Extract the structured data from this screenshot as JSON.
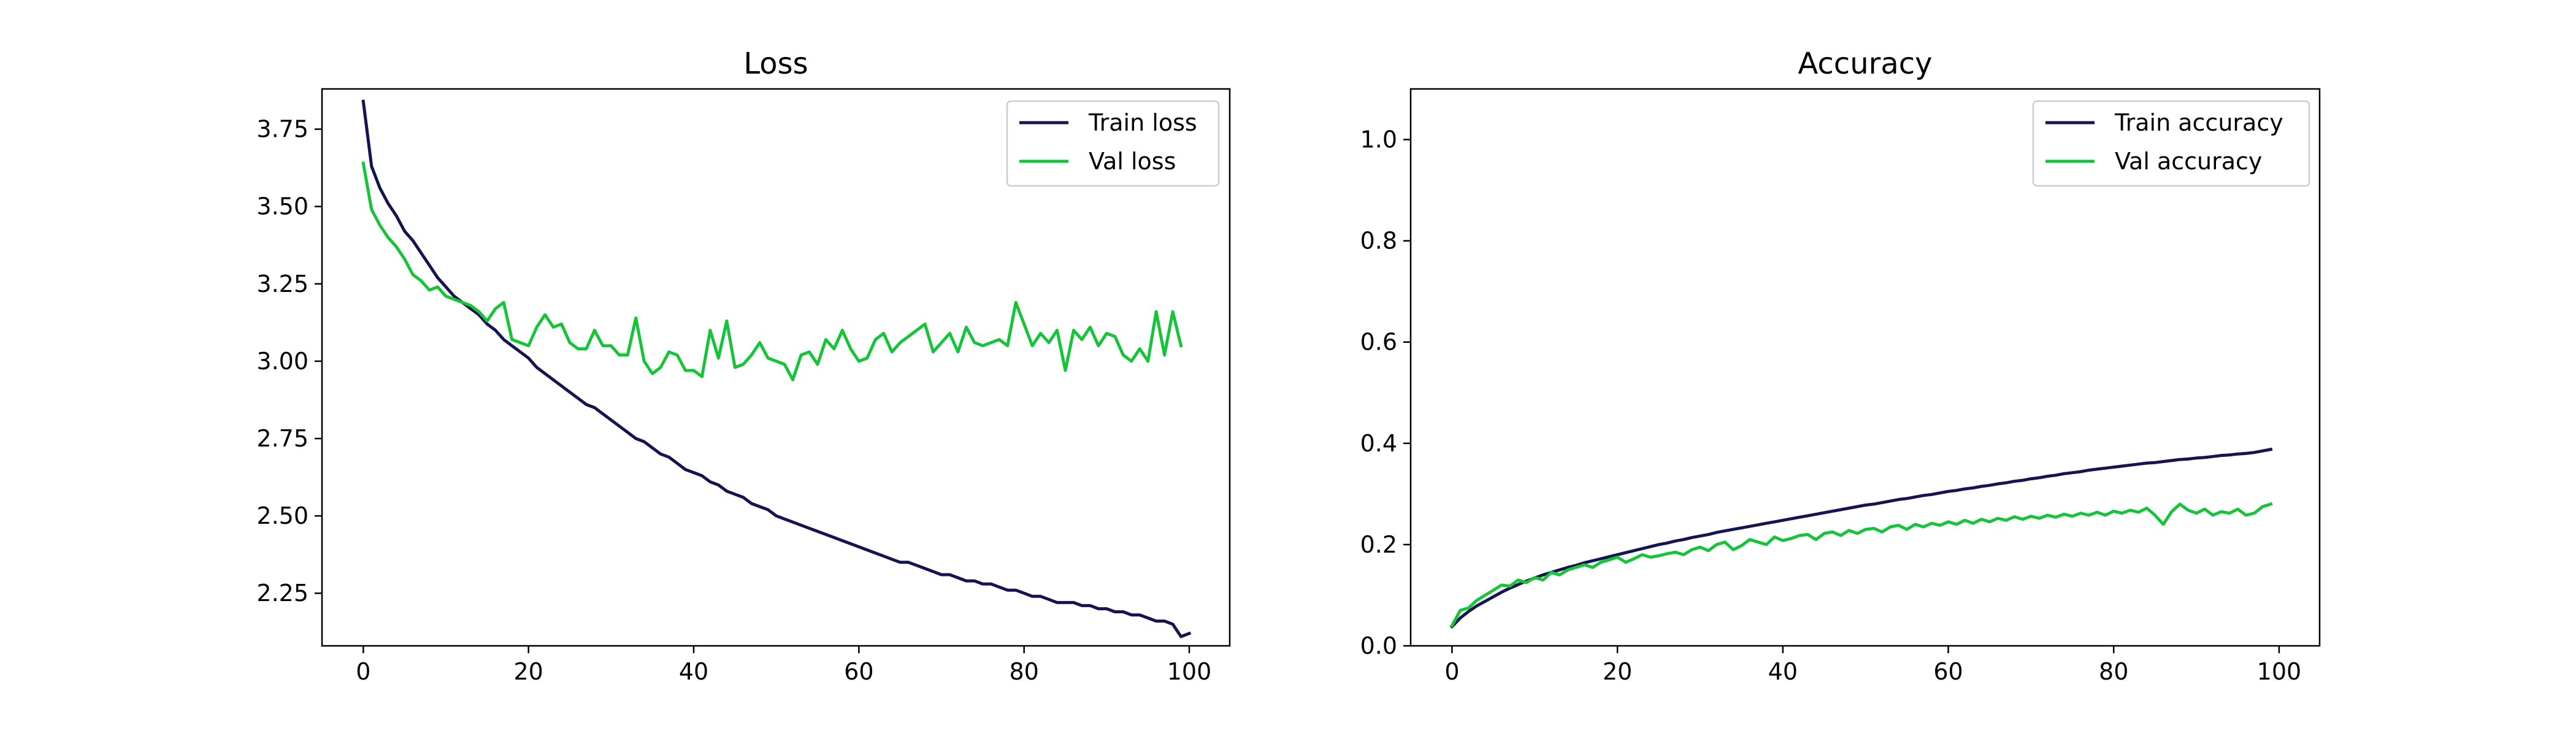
{
  "chart_data": [
    {
      "type": "line",
      "title": "Loss",
      "xlabel": "",
      "ylabel": "",
      "xlim": [
        -5,
        104.9
      ],
      "ylim": [
        2.08,
        3.88
      ],
      "xticks": [
        0,
        20,
        40,
        60,
        80,
        100
      ],
      "yticks": [
        2.25,
        2.5,
        2.75,
        3.0,
        3.25,
        3.5,
        3.75
      ],
      "ytick_labels": [
        "2.25",
        "2.50",
        "2.75",
        "3.00",
        "3.25",
        "3.50",
        "3.75"
      ],
      "grid": false,
      "legend_position": "upper-right",
      "series": [
        {
          "name": "Train loss",
          "color": "#141450",
          "values": [
            3.84,
            3.63,
            3.56,
            3.51,
            3.47,
            3.42,
            3.39,
            3.35,
            3.31,
            3.27,
            3.24,
            3.21,
            3.19,
            3.17,
            3.15,
            3.12,
            3.1,
            3.07,
            3.05,
            3.03,
            3.01,
            2.98,
            2.96,
            2.94,
            2.92,
            2.9,
            2.88,
            2.86,
            2.85,
            2.83,
            2.81,
            2.79,
            2.77,
            2.75,
            2.74,
            2.72,
            2.7,
            2.69,
            2.67,
            2.65,
            2.64,
            2.63,
            2.61,
            2.6,
            2.58,
            2.57,
            2.56,
            2.54,
            2.53,
            2.52,
            2.5,
            2.49,
            2.48,
            2.47,
            2.46,
            2.45,
            2.44,
            2.43,
            2.42,
            2.41,
            2.4,
            2.39,
            2.38,
            2.37,
            2.36,
            2.35,
            2.35,
            2.34,
            2.33,
            2.32,
            2.31,
            2.31,
            2.3,
            2.29,
            2.29,
            2.28,
            2.28,
            2.27,
            2.26,
            2.26,
            2.25,
            2.24,
            2.24,
            2.23,
            2.22,
            2.22,
            2.22,
            2.21,
            2.21,
            2.2,
            2.2,
            2.19,
            2.19,
            2.18,
            2.18,
            2.17,
            2.16,
            2.16,
            2.15,
            2.11,
            2.12
          ]
        },
        {
          "name": "Val loss",
          "color": "#16c43a",
          "values": [
            3.64,
            3.49,
            3.44,
            3.4,
            3.37,
            3.33,
            3.28,
            3.26,
            3.23,
            3.24,
            3.21,
            3.2,
            3.19,
            3.18,
            3.16,
            3.13,
            3.17,
            3.19,
            3.07,
            3.06,
            3.05,
            3.11,
            3.15,
            3.11,
            3.12,
            3.06,
            3.04,
            3.04,
            3.1,
            3.05,
            3.05,
            3.02,
            3.02,
            3.14,
            3.0,
            2.96,
            2.98,
            3.03,
            3.02,
            2.97,
            2.97,
            2.95,
            3.1,
            3.01,
            3.13,
            2.98,
            2.99,
            3.02,
            3.06,
            3.01,
            3.0,
            2.99,
            2.94,
            3.02,
            3.03,
            2.99,
            3.07,
            3.04,
            3.1,
            3.04,
            3.0,
            3.01,
            3.07,
            3.09,
            3.03,
            3.06,
            3.08,
            3.1,
            3.12,
            3.03,
            3.06,
            3.09,
            3.03,
            3.11,
            3.06,
            3.05,
            3.06,
            3.07,
            3.05,
            3.19,
            3.12,
            3.05,
            3.09,
            3.06,
            3.1,
            2.97,
            3.1,
            3.07,
            3.11,
            3.05,
            3.09,
            3.08,
            3.02,
            3.0,
            3.04,
            3.0,
            3.16,
            3.02,
            3.16,
            3.05
          ]
        }
      ]
    },
    {
      "type": "line",
      "title": "Accuracy",
      "xlabel": "",
      "ylabel": "",
      "xlim": [
        -5,
        104.9
      ],
      "ylim": [
        0.0,
        1.1
      ],
      "xticks": [
        0,
        20,
        40,
        60,
        80,
        100
      ],
      "yticks": [
        0.0,
        0.2,
        0.4,
        0.6,
        0.8,
        1.0
      ],
      "ytick_labels": [
        "0.0",
        "0.2",
        "0.4",
        "0.6",
        "0.8",
        "1.0"
      ],
      "grid": false,
      "legend_position": "upper-right",
      "series": [
        {
          "name": "Train accuracy",
          "color": "#141450",
          "values": [
            0.038,
            0.055,
            0.068,
            0.079,
            0.088,
            0.097,
            0.106,
            0.114,
            0.121,
            0.128,
            0.134,
            0.14,
            0.145,
            0.15,
            0.155,
            0.159,
            0.164,
            0.168,
            0.172,
            0.176,
            0.18,
            0.184,
            0.188,
            0.192,
            0.196,
            0.2,
            0.203,
            0.207,
            0.21,
            0.214,
            0.217,
            0.22,
            0.224,
            0.227,
            0.23,
            0.233,
            0.236,
            0.239,
            0.242,
            0.245,
            0.248,
            0.251,
            0.254,
            0.257,
            0.26,
            0.263,
            0.266,
            0.269,
            0.272,
            0.275,
            0.278,
            0.28,
            0.283,
            0.286,
            0.289,
            0.291,
            0.294,
            0.297,
            0.299,
            0.302,
            0.305,
            0.307,
            0.31,
            0.312,
            0.315,
            0.317,
            0.32,
            0.322,
            0.325,
            0.327,
            0.33,
            0.332,
            0.335,
            0.337,
            0.34,
            0.342,
            0.344,
            0.347,
            0.349,
            0.351,
            0.353,
            0.355,
            0.357,
            0.359,
            0.361,
            0.362,
            0.364,
            0.366,
            0.368,
            0.369,
            0.371,
            0.372,
            0.374,
            0.376,
            0.377,
            0.379,
            0.38,
            0.382,
            0.385,
            0.388
          ]
        },
        {
          "name": "Val accuracy",
          "color": "#16c43a",
          "values": [
            0.04,
            0.07,
            0.075,
            0.09,
            0.1,
            0.11,
            0.12,
            0.118,
            0.13,
            0.125,
            0.135,
            0.13,
            0.145,
            0.14,
            0.15,
            0.155,
            0.16,
            0.155,
            0.165,
            0.17,
            0.175,
            0.165,
            0.172,
            0.18,
            0.175,
            0.178,
            0.182,
            0.185,
            0.18,
            0.19,
            0.195,
            0.188,
            0.2,
            0.205,
            0.19,
            0.198,
            0.21,
            0.205,
            0.2,
            0.215,
            0.208,
            0.212,
            0.218,
            0.22,
            0.21,
            0.222,
            0.225,
            0.218,
            0.228,
            0.222,
            0.23,
            0.232,
            0.225,
            0.235,
            0.238,
            0.23,
            0.24,
            0.235,
            0.242,
            0.238,
            0.245,
            0.24,
            0.248,
            0.242,
            0.25,
            0.245,
            0.252,
            0.248,
            0.255,
            0.25,
            0.256,
            0.252,
            0.258,
            0.254,
            0.26,
            0.256,
            0.262,
            0.258,
            0.264,
            0.258,
            0.266,
            0.262,
            0.268,
            0.264,
            0.272,
            0.258,
            0.24,
            0.265,
            0.28,
            0.268,
            0.262,
            0.27,
            0.258,
            0.265,
            0.262,
            0.27,
            0.258,
            0.262,
            0.275,
            0.28
          ]
        }
      ]
    }
  ]
}
